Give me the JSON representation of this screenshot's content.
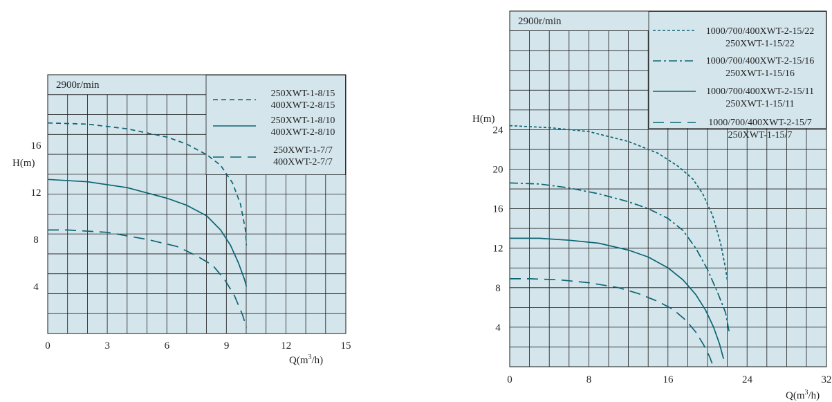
{
  "colors": {
    "panel": "#d4e5ec",
    "grid": "#1a1a1a",
    "curve": "#0c6573"
  },
  "chart_data": [
    {
      "type": "line",
      "speed_label": "2900r/min",
      "ylabel": "H(m)",
      "xlabel_prefix": "Q(m",
      "xlabel_sup": "3",
      "xlabel_suffix": "/h)",
      "xlim": [
        0,
        15
      ],
      "ylim": [
        0,
        22
      ],
      "x_ticks": [
        "0",
        "3",
        "6",
        "9",
        "12",
        "15"
      ],
      "y_ticks": [
        "4",
        "8",
        "12",
        "16"
      ],
      "grid": true,
      "legend_position": "top-right",
      "series": [
        {
          "name": "250XWT-1-8/15",
          "name2": "400XWT-2-8/15",
          "dash": "dashed",
          "x": [
            0,
            2,
            4,
            6,
            7,
            8,
            8.7,
            9.3,
            9.7,
            9.95,
            10.0
          ],
          "y": [
            17.9,
            17.8,
            17.4,
            16.7,
            16.1,
            15.2,
            14.3,
            12.8,
            11.0,
            8.8,
            7.5
          ]
        },
        {
          "name": "250XWT-1-8/10",
          "name2": "400XWT-2-8/10",
          "dash": "solid",
          "x": [
            0,
            2,
            4,
            6,
            7,
            8,
            8.7,
            9.2,
            9.6,
            9.9,
            10.0
          ],
          "y": [
            13.1,
            12.9,
            12.4,
            11.5,
            10.9,
            10.0,
            8.8,
            7.5,
            6.0,
            4.6,
            4.0
          ]
        },
        {
          "name": "250XWT-1-7/7",
          "name2": "400XWT-2-7/7",
          "dash": "longdash",
          "x": [
            0,
            1,
            3,
            5,
            6.5,
            7.5,
            8.3,
            8.9,
            9.4,
            9.8,
            10.0
          ],
          "y": [
            8.8,
            8.8,
            8.6,
            8.0,
            7.4,
            6.6,
            5.8,
            4.6,
            3.2,
            1.6,
            0.5
          ]
        }
      ]
    },
    {
      "type": "line",
      "speed_label": "2900r/min",
      "ylabel": "H(m)",
      "xlabel_prefix": "Q(m",
      "xlabel_sup": "3",
      "xlabel_suffix": "/h)",
      "xlim": [
        0,
        32
      ],
      "ylim": [
        0,
        36
      ],
      "x_ticks": [
        "0",
        "8",
        "16",
        "24",
        "32"
      ],
      "y_ticks": [
        "4",
        "8",
        "12",
        "16",
        "20",
        "24"
      ],
      "grid": true,
      "legend_position": "top-right",
      "series": [
        {
          "name": "1000/700/400XWT-2-15/22",
          "name2": "250XWT-1-15/22",
          "dash": "dotted",
          "x": [
            0,
            4,
            8,
            12,
            15,
            17,
            18.5,
            19.5,
            20.5,
            21.3,
            21.8,
            22.0
          ],
          "y": [
            24.4,
            24.2,
            23.8,
            22.8,
            21.6,
            20.3,
            19.0,
            17.5,
            15.3,
            12.5,
            10.0,
            8.6
          ]
        },
        {
          "name": "1000/700/400XWT-2-15/16",
          "name2": "250XWT-1-15/16",
          "dash": "dashdot",
          "x": [
            0,
            3,
            6,
            9,
            12,
            14,
            16,
            17.5,
            18.8,
            20,
            21,
            21.8,
            22.2
          ],
          "y": [
            18.6,
            18.5,
            18.1,
            17.5,
            16.7,
            16.0,
            15.0,
            13.8,
            12.0,
            9.8,
            7.5,
            5.5,
            3.4
          ]
        },
        {
          "name": "1000/700/400XWT-2-15/11",
          "name2": "250XWT-1-15/11",
          "dash": "solid",
          "x": [
            0,
            3,
            6,
            9,
            12,
            14,
            16,
            17.5,
            18.8,
            19.8,
            20.6,
            21.2,
            21.6
          ],
          "y": [
            13.0,
            13.0,
            12.8,
            12.5,
            11.8,
            11.1,
            10.0,
            8.8,
            7.3,
            5.7,
            4.0,
            2.3,
            0.8
          ]
        },
        {
          "name": "1000/700/400XWT-2-15/7",
          "name2": "250XWT-1-15/7",
          "dash": "longdash",
          "x": [
            0,
            2,
            5,
            8,
            11,
            13,
            15,
            16.5,
            17.8,
            18.8,
            19.6,
            20.2,
            20.5
          ],
          "y": [
            8.9,
            8.9,
            8.8,
            8.5,
            8.0,
            7.4,
            6.6,
            5.8,
            4.7,
            3.5,
            2.2,
            1.0,
            0.2
          ]
        }
      ]
    }
  ]
}
